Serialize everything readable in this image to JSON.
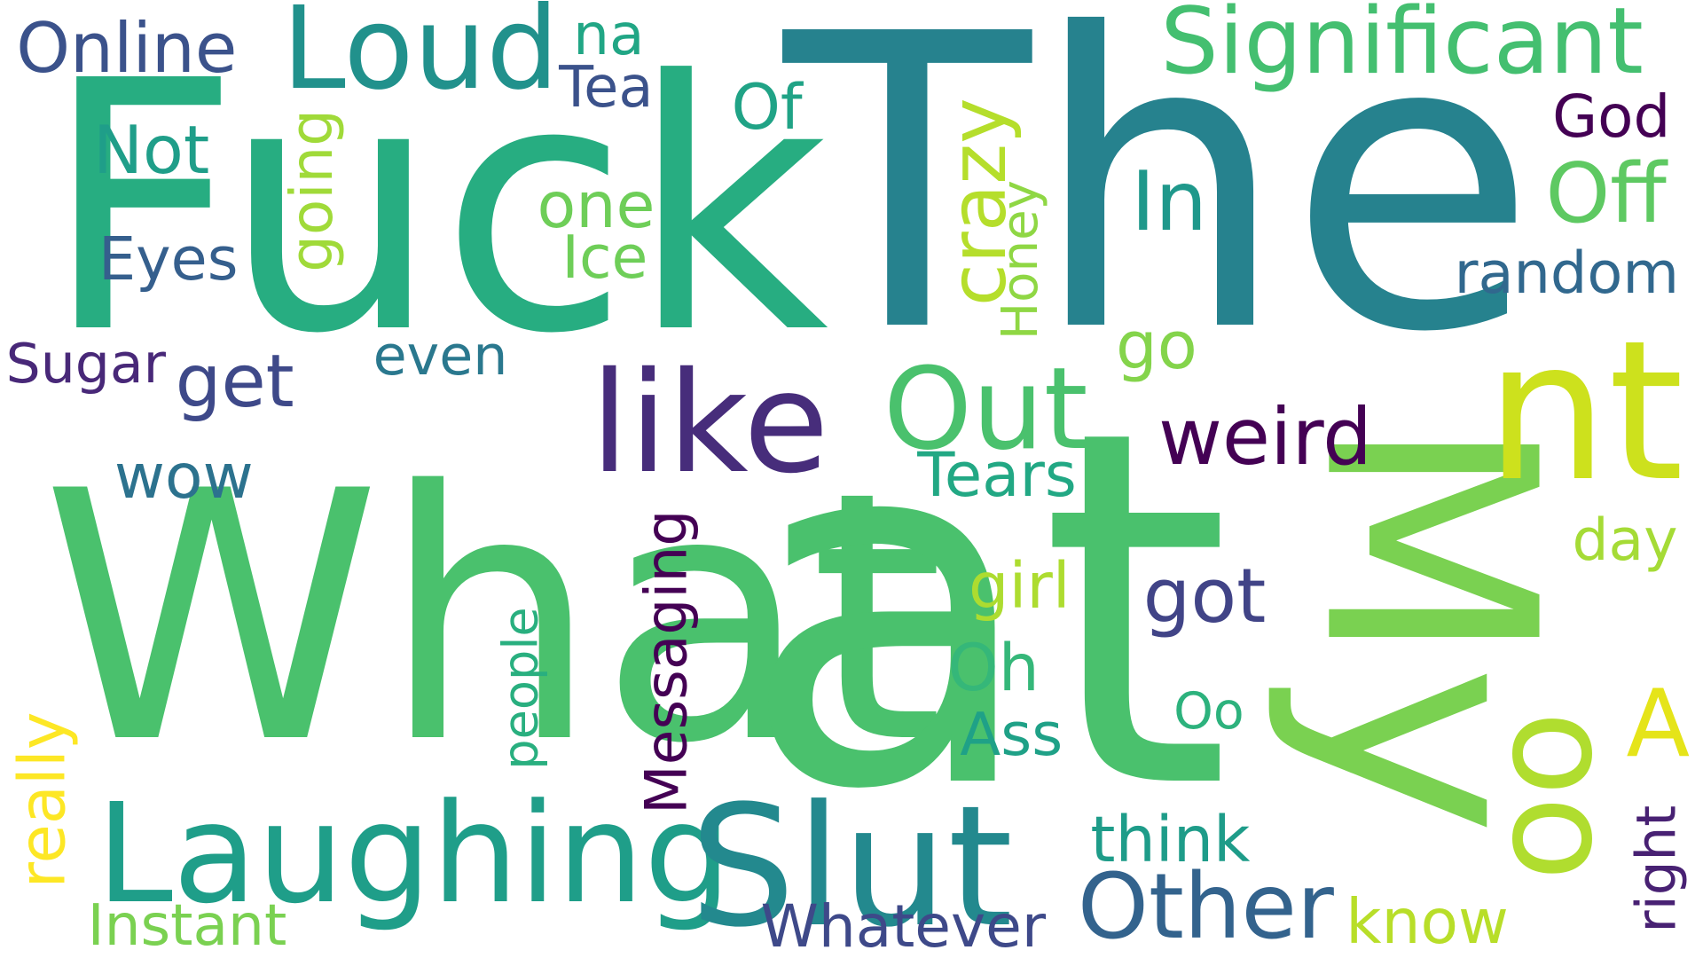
{
  "words": [
    {
      "text": "What",
      "color": "#4ac16d"
    },
    {
      "text": "The",
      "color": "#26828e"
    },
    {
      "text": "Fuck",
      "color": "#27ad81"
    },
    {
      "text": "at",
      "color": "#4ac16d"
    },
    {
      "text": "My",
      "color": "#7ad151"
    },
    {
      "text": "nt",
      "color": "#cde11d"
    },
    {
      "text": "Loud",
      "color": "#21918c"
    },
    {
      "text": "Significant",
      "color": "#44bf70"
    },
    {
      "text": "Online",
      "color": "#3b528b"
    },
    {
      "text": "na",
      "color": "#21a685"
    },
    {
      "text": "Tea",
      "color": "#3b528b"
    },
    {
      "text": "Of",
      "color": "#20a386"
    },
    {
      "text": "God",
      "color": "#440154"
    },
    {
      "text": "Not",
      "color": "#1f9e89"
    },
    {
      "text": "In",
      "color": "#1f988b"
    },
    {
      "text": "Off",
      "color": "#5ec962"
    },
    {
      "text": "one",
      "color": "#6ece58"
    },
    {
      "text": "Eyes",
      "color": "#355f8d"
    },
    {
      "text": "Ice",
      "color": "#6ece58"
    },
    {
      "text": "going",
      "color": "#a0da39"
    },
    {
      "text": "crazy",
      "color": "#b5de2b"
    },
    {
      "text": "Honey",
      "color": "#8fd744"
    },
    {
      "text": "random",
      "color": "#31688e"
    },
    {
      "text": "go",
      "color": "#84d44b"
    },
    {
      "text": "Sugar",
      "color": "#482878"
    },
    {
      "text": "get",
      "color": "#3e4989"
    },
    {
      "text": "even",
      "color": "#2a788e"
    },
    {
      "text": "like",
      "color": "#472d7b"
    },
    {
      "text": "Out",
      "color": "#4ac16d"
    },
    {
      "text": "weird",
      "color": "#440154"
    },
    {
      "text": "wow",
      "color": "#2c728e"
    },
    {
      "text": "Tears",
      "color": "#22a884"
    },
    {
      "text": "day",
      "color": "#a5db36"
    },
    {
      "text": "Messaging",
      "color": "#440154"
    },
    {
      "text": "girl",
      "color": "#addc30"
    },
    {
      "text": "got",
      "color": "#414487"
    },
    {
      "text": "people",
      "color": "#29af7f"
    },
    {
      "text": "Oh",
      "color": "#35b779"
    },
    {
      "text": "Oo",
      "color": "#2db27d"
    },
    {
      "text": "A",
      "color": "#e5e419"
    },
    {
      "text": "Ass",
      "color": "#1fa187"
    },
    {
      "text": "oo",
      "color": "#b0dd2f"
    },
    {
      "text": "really",
      "color": "#fde725"
    },
    {
      "text": "Laughing",
      "color": "#1f9e89"
    },
    {
      "text": "Slut",
      "color": "#23898e"
    },
    {
      "text": "think",
      "color": "#1e9c89"
    },
    {
      "text": "Other",
      "color": "#33638d"
    },
    {
      "text": "right",
      "color": "#482173"
    },
    {
      "text": "Instant",
      "color": "#7ad151"
    },
    {
      "text": "Whatever",
      "color": "#3e4989"
    },
    {
      "text": "know",
      "color": "#b8de29"
    }
  ]
}
